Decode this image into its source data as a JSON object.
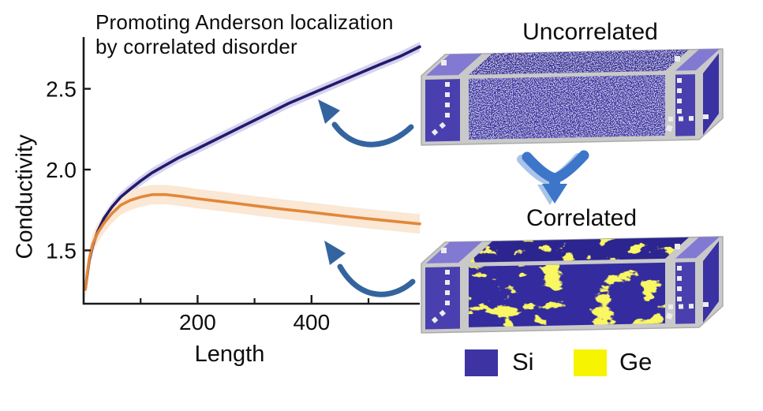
{
  "figure": {
    "title_line1": "Promoting Anderson localization",
    "title_line2": "by correlated disorder"
  },
  "chart_data": {
    "type": "line",
    "title": "Promoting Anderson localization by correlated disorder",
    "xlabel": "Length",
    "ylabel": "Conductivity",
    "xlim": [
      0,
      590
    ],
    "ylim": [
      1.17,
      2.82
    ],
    "x_ticks_major": [
      200,
      400
    ],
    "x_ticks_minor": [
      100,
      300,
      500
    ],
    "y_ticks_major": [
      1.5,
      2.0,
      2.5
    ],
    "grid": false,
    "legend_position": "none",
    "series": [
      {
        "name": "Uncorrelated disorder",
        "color": "#211a6b",
        "band_color": "#d6d2ee",
        "band_halfwidth": 0.03,
        "points": [
          [
            3,
            1.26
          ],
          [
            6,
            1.34
          ],
          [
            10,
            1.44
          ],
          [
            16,
            1.53
          ],
          [
            25,
            1.62
          ],
          [
            36,
            1.7
          ],
          [
            50,
            1.77
          ],
          [
            65,
            1.83
          ],
          [
            82,
            1.88
          ],
          [
            100,
            1.93
          ],
          [
            120,
            1.98
          ],
          [
            145,
            2.03
          ],
          [
            165,
            2.07
          ],
          [
            200,
            2.13
          ],
          [
            240,
            2.2
          ],
          [
            280,
            2.27
          ],
          [
            320,
            2.34
          ],
          [
            360,
            2.41
          ],
          [
            400,
            2.47
          ],
          [
            440,
            2.53
          ],
          [
            480,
            2.59
          ],
          [
            520,
            2.65
          ],
          [
            555,
            2.7
          ],
          [
            590,
            2.76
          ]
        ]
      },
      {
        "name": "Correlated disorder",
        "color": "#e2873a",
        "band_color": "#fae7d4",
        "band_halfwidth": 0.06,
        "points": [
          [
            3,
            1.26
          ],
          [
            6,
            1.35
          ],
          [
            10,
            1.45
          ],
          [
            16,
            1.54
          ],
          [
            25,
            1.61
          ],
          [
            36,
            1.67
          ],
          [
            50,
            1.73
          ],
          [
            65,
            1.78
          ],
          [
            82,
            1.81
          ],
          [
            100,
            1.83
          ],
          [
            120,
            1.845
          ],
          [
            145,
            1.845
          ],
          [
            170,
            1.835
          ],
          [
            200,
            1.82
          ],
          [
            235,
            1.805
          ],
          [
            270,
            1.79
          ],
          [
            310,
            1.772
          ],
          [
            350,
            1.755
          ],
          [
            390,
            1.74
          ],
          [
            430,
            1.723
          ],
          [
            470,
            1.707
          ],
          [
            510,
            1.692
          ],
          [
            550,
            1.678
          ],
          [
            590,
            1.664
          ]
        ]
      }
    ]
  },
  "structures": {
    "uncorrelated_label": "Uncorrelated",
    "correlated_label": "Correlated"
  },
  "legend": {
    "items": [
      {
        "label": "Si",
        "color": "#3e33a3"
      },
      {
        "label": "Ge",
        "color": "#f7f402"
      }
    ]
  },
  "colors": {
    "axis": "#1a1a1a",
    "arrow_blue": "#34649f",
    "transform_arrow_blue": "#3d76c9",
    "transform_arrow_echo": "#aac4e9",
    "box_frame": "#c9c9c9",
    "box_frame_edge": "#ababab",
    "cap_face": "#4a3fae",
    "cap_top": "#8279d2",
    "body_face": "#332b9e",
    "body_top": "#2c2590",
    "side_face": "#3a32a2",
    "si_speckle": "#9e99c7",
    "ge_yellow": "#f2ee1f",
    "dash_white": "#ececec"
  },
  "icons": {
    "arrow_to_uncorrelated_curve": "curved-arrow-icon",
    "arrow_to_correlated_curve": "curved-arrow-icon",
    "transform_down_arrow": "down-swoosh-arrow-icon"
  }
}
